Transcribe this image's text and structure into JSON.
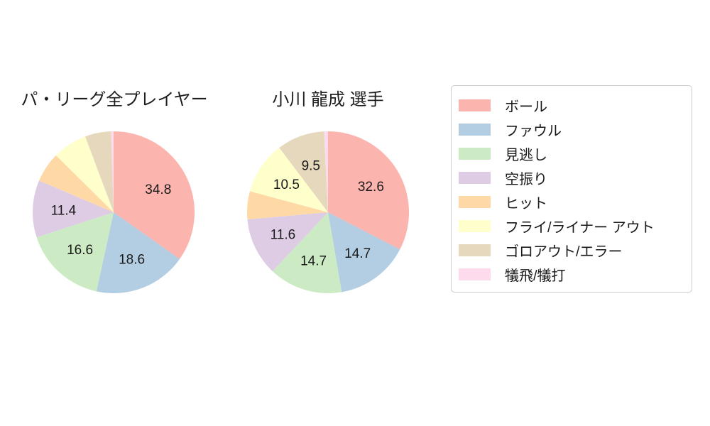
{
  "colors": {
    "background": "#ffffff",
    "text": "#1a1a1a",
    "legend_border": "#cccccc"
  },
  "chart_data": [
    {
      "type": "pie",
      "title": "パ・リーグ全プレイヤー",
      "categories": [
        "ボール",
        "ファウル",
        "見逃し",
        "空振り",
        "ヒット",
        "フライ/ライナー アウト",
        "ゴロアウト/エラー",
        "犠飛/犠打"
      ],
      "values": [
        34.8,
        18.6,
        16.6,
        11.4,
        6.0,
        6.9,
        5.2,
        0.5
      ],
      "value_labels": [
        "34.8",
        "18.6",
        "16.6",
        "11.4",
        "",
        "",
        "",
        ""
      ],
      "colors": [
        "#fbb4ae",
        "#b3cde3",
        "#ccebc5",
        "#decbe4",
        "#fed9a6",
        "#ffffcc",
        "#e5d8bd",
        "#fddaec"
      ],
      "start_angle": 90,
      "counterclockwise": false,
      "label_distance": 0.62
    },
    {
      "type": "pie",
      "title": "小川 龍成 選手",
      "categories": [
        "ボール",
        "ファウル",
        "見逃し",
        "空振り",
        "ヒット",
        "フライ/ライナー アウト",
        "ゴロアウト/エラー",
        "犠飛/犠打"
      ],
      "values": [
        32.6,
        14.7,
        14.7,
        11.6,
        5.6,
        10.5,
        9.5,
        0.8
      ],
      "value_labels": [
        "32.6",
        "14.7",
        "14.7",
        "11.6",
        "",
        "10.5",
        "9.5",
        ""
      ],
      "colors": [
        "#fbb4ae",
        "#b3cde3",
        "#ccebc5",
        "#decbe4",
        "#fed9a6",
        "#ffffcc",
        "#e5d8bd",
        "#fddaec"
      ],
      "start_angle": 90,
      "counterclockwise": false,
      "label_distance": 0.62
    }
  ],
  "legend": {
    "items": [
      {
        "label": "ボール",
        "color": "#fbb4ae"
      },
      {
        "label": "ファウル",
        "color": "#b3cde3"
      },
      {
        "label": "見逃し",
        "color": "#ccebc5"
      },
      {
        "label": "空振り",
        "color": "#decbe4"
      },
      {
        "label": "ヒット",
        "color": "#fed9a6"
      },
      {
        "label": "フライ/ライナー アウト",
        "color": "#ffffcc"
      },
      {
        "label": "ゴロアウト/エラー",
        "color": "#e5d8bd"
      },
      {
        "label": "犠飛/犠打",
        "color": "#fddaec"
      }
    ]
  }
}
